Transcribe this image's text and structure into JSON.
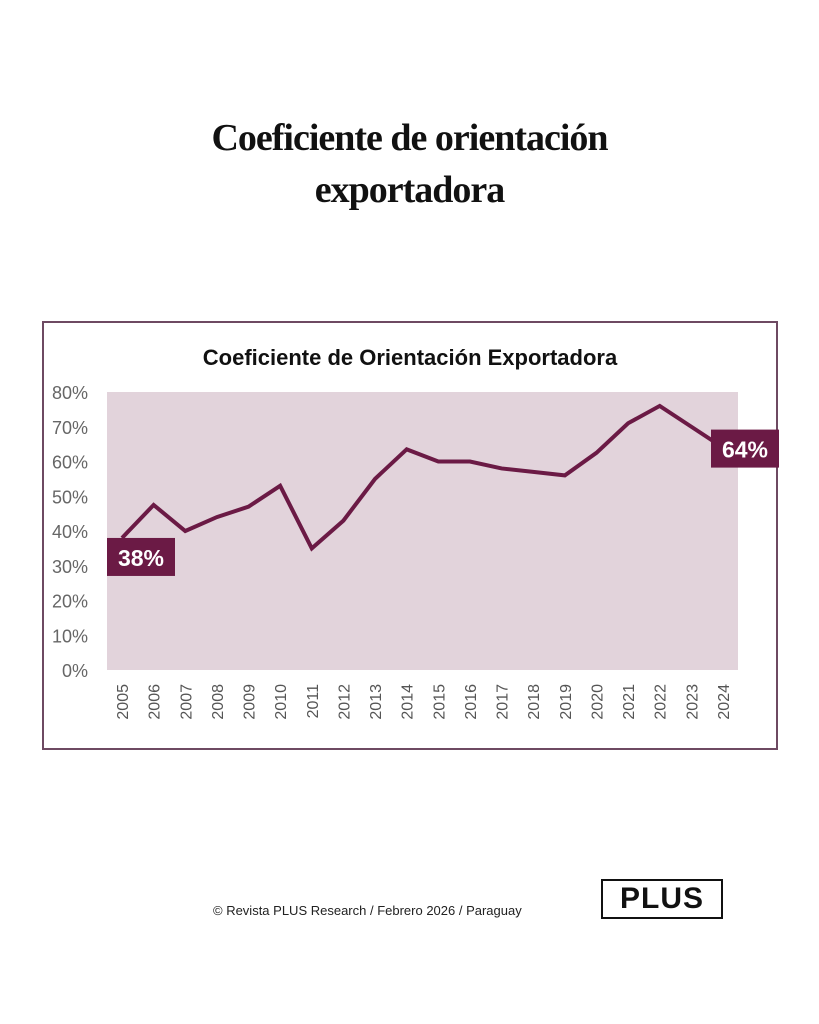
{
  "headline": {
    "line1": "Coeficiente de orientación",
    "line2": "exportadora"
  },
  "chart_data": {
    "type": "line",
    "title": "Coeficiente de Orientación Exportadora",
    "xlabel": "",
    "ylabel": "",
    "categories": [
      "2005",
      "2006",
      "2007",
      "2008",
      "2009",
      "2010",
      "2011",
      "2012",
      "2013",
      "2014",
      "2015",
      "2016",
      "2017",
      "2018",
      "2019",
      "2020",
      "2021",
      "2022",
      "2023",
      "2024"
    ],
    "values": [
      38,
      47.5,
      40,
      44,
      47,
      53,
      35,
      43,
      55,
      63.5,
      60,
      60,
      58,
      57,
      56,
      62.5,
      71,
      76,
      70,
      64
    ],
    "ylim": [
      0,
      80
    ],
    "yticks": [
      "0%",
      "10%",
      "20%",
      "30%",
      "40%",
      "50%",
      "60%",
      "70%",
      "80%"
    ],
    "grid": false,
    "annotations": [
      {
        "category": "2005",
        "label": "38%"
      },
      {
        "category": "2024",
        "label": "64%"
      }
    ],
    "colors": {
      "line": "#6b1a45",
      "plot_bg": "#e2d3db",
      "label_bg": "#6b1a45"
    }
  },
  "footer": {
    "credit": "© Revista PLUS Research /  Febrero 2026  / Paraguay",
    "logo": "PLUS"
  }
}
